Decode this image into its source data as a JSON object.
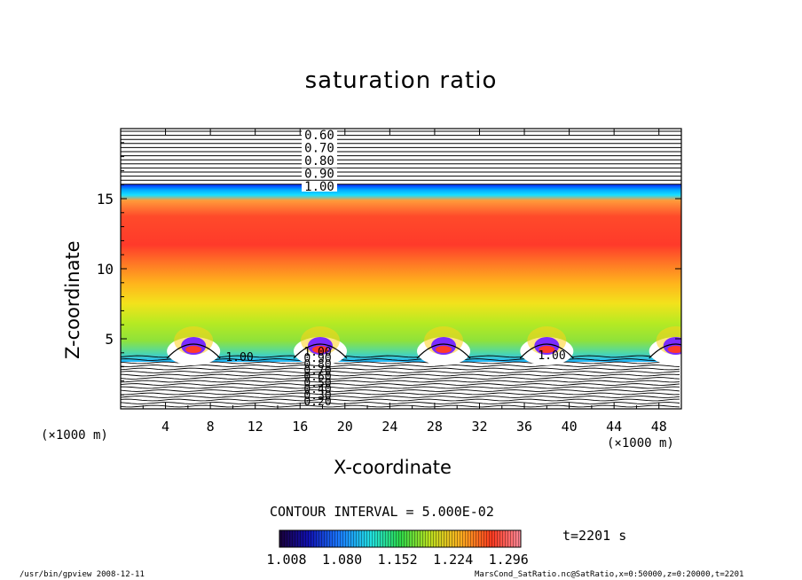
{
  "chart_data": {
    "type": "heatmap",
    "title": "saturation ratio",
    "xlabel": "X-coordinate",
    "ylabel": "Z-coordinate",
    "x_unit_label": "(×1000 m)",
    "xlim": [
      0,
      50
    ],
    "ylim": [
      0,
      20
    ],
    "x_ticks": [
      "4",
      "8",
      "12",
      "16",
      "20",
      "24",
      "28",
      "32",
      "36",
      "40",
      "44",
      "48"
    ],
    "y_ticks": [
      "5",
      "10",
      "15"
    ],
    "upper_contour_labels": [
      "0.60",
      "0.70",
      "0.80",
      "0.90",
      "1.00"
    ],
    "lower_contour_labels": [
      "0.20",
      "0.30",
      "0.40",
      "0.50",
      "0.60",
      "0.70",
      "0.80",
      "0.90",
      "1.00"
    ],
    "inline_contour_labels": [
      "1.00",
      "1.00"
    ],
    "contour_interval_text": "CONTOUR INTERVAL = 5.000E-02",
    "colorbar_ticks": [
      "1.008",
      "1.080",
      "1.152",
      "1.224",
      "1.296"
    ],
    "colorbar_range": [
      1.008,
      1.296
    ],
    "time_label": "t=2201 s",
    "grid": false
  },
  "footer": {
    "left": "/usr/bin/gpview   2008-12-11",
    "right": "MarsCond_SatRatio.nc@SatRatio,x=0:50000,z=0:20000,t=2201"
  }
}
